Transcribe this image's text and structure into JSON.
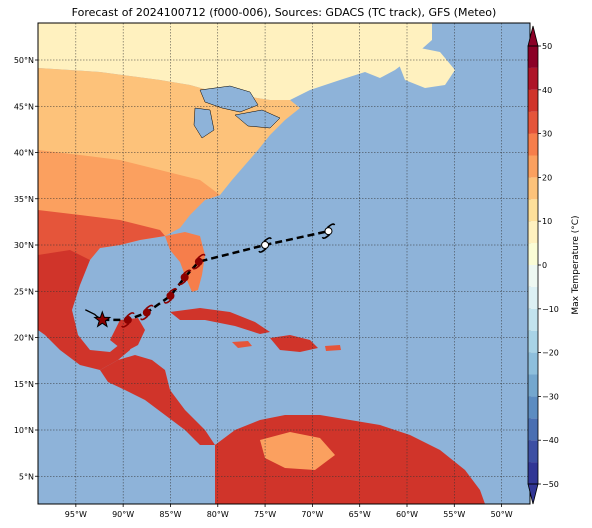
{
  "title": "Forecast of 2024100712 (f000-006), Sources: GDACS (TC track), GFS (Meteo)",
  "map": {
    "lon_range": [
      -99,
      -47
    ],
    "lat_range": [
      2,
      54
    ],
    "lon_ticks": [
      {
        "value": -95,
        "label": "95°W"
      },
      {
        "value": -90,
        "label": "90°W"
      },
      {
        "value": -85,
        "label": "85°W"
      },
      {
        "value": -80,
        "label": "80°W"
      },
      {
        "value": -75,
        "label": "75°W"
      },
      {
        "value": -70,
        "label": "70°W"
      },
      {
        "value": -65,
        "label": "65°W"
      },
      {
        "value": -60,
        "label": "60°W"
      },
      {
        "value": -55,
        "label": "55°W"
      },
      {
        "value": -50,
        "label": "50°W"
      }
    ],
    "lat_ticks": [
      {
        "value": 5,
        "label": "5°N"
      },
      {
        "value": 10,
        "label": "10°N"
      },
      {
        "value": 15,
        "label": "15°N"
      },
      {
        "value": 20,
        "label": "20°N"
      },
      {
        "value": 25,
        "label": "25°N"
      },
      {
        "value": 30,
        "label": "30°N"
      },
      {
        "value": 35,
        "label": "35°N"
      },
      {
        "value": 40,
        "label": "40°N"
      },
      {
        "value": 45,
        "label": "45°N"
      },
      {
        "value": 50,
        "label": "50°N"
      }
    ],
    "ocean_color": "#8eb3d9",
    "gridlines": true
  },
  "storm_track": {
    "past_track": [
      [
        -94,
        23
      ],
      [
        -93,
        22.5
      ],
      [
        -92.8,
        22.3
      ],
      [
        -92.2,
        21.9
      ]
    ],
    "current_position": [
      -92.2,
      21.9
    ],
    "forecast_points": [
      [
        -92.2,
        21.9
      ],
      [
        -89.5,
        21.9
      ],
      [
        -87.5,
        22.7
      ],
      [
        -85,
        24.5
      ],
      [
        -83.5,
        26.5
      ],
      [
        -82,
        28.2
      ],
      [
        -75,
        30
      ],
      [
        -68.3,
        31.5
      ]
    ],
    "intense_color": "#8b0000",
    "weak_color": "#ffffff"
  },
  "colorbar": {
    "label": "Max Temperature (°C)",
    "min": -50,
    "max": 50,
    "ticks": [
      50,
      40,
      30,
      20,
      10,
      0,
      -10,
      -20,
      -30,
      -40,
      -50
    ],
    "tick_labels": [
      "50",
      "40",
      "30",
      "20",
      "10",
      "0",
      "−10",
      "−20",
      "−30",
      "−40",
      "−50"
    ],
    "levels": [
      {
        "from": -50,
        "to": -45,
        "color": "#313695"
      },
      {
        "from": -45,
        "to": -40,
        "color": "#3d4fa3"
      },
      {
        "from": -40,
        "to": -35,
        "color": "#4a6fb2"
      },
      {
        "from": -35,
        "to": -30,
        "color": "#5c8cc1"
      },
      {
        "from": -30,
        "to": -25,
        "color": "#74a7ce"
      },
      {
        "from": -25,
        "to": -20,
        "color": "#8ebfdc"
      },
      {
        "from": -20,
        "to": -15,
        "color": "#a8d3e6"
      },
      {
        "from": -15,
        "to": -10,
        "color": "#c2e3ee"
      },
      {
        "from": -10,
        "to": -5,
        "color": "#dcf0f4"
      },
      {
        "from": -5,
        "to": 0,
        "color": "#eef8f2"
      },
      {
        "from": 0,
        "to": 5,
        "color": "#fbfdd6"
      },
      {
        "from": 5,
        "to": 10,
        "color": "#fff1bf"
      },
      {
        "from": 10,
        "to": 15,
        "color": "#fee09a"
      },
      {
        "from": 15,
        "to": 20,
        "color": "#fdc27a"
      },
      {
        "from": 20,
        "to": 25,
        "color": "#fba05f"
      },
      {
        "from": 25,
        "to": 30,
        "color": "#f67e4b"
      },
      {
        "from": 30,
        "to": 35,
        "color": "#e5553a"
      },
      {
        "from": 35,
        "to": 40,
        "color": "#d0342a"
      },
      {
        "from": 40,
        "to": 45,
        "color": "#ae1428"
      },
      {
        "from": 45,
        "to": 50,
        "color": "#8b0026"
      }
    ]
  }
}
